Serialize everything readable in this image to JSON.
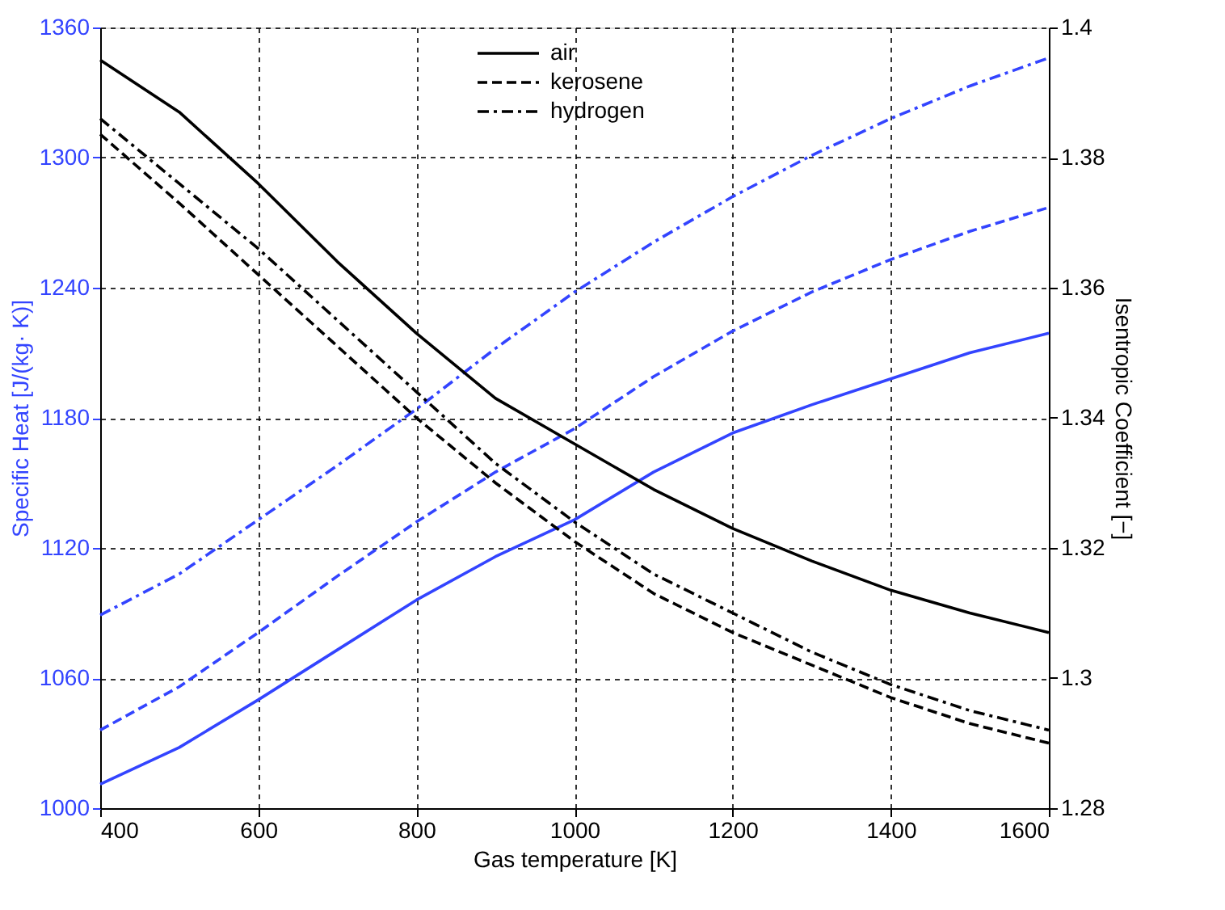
{
  "chart_data": {
    "type": "line",
    "xlabel": "Gas temperature [K]",
    "ylabel": "Specific Heat [J/(kg· K)]",
    "y2label": "Isentropic Coefficient [−]",
    "x": [
      400,
      500,
      600,
      700,
      800,
      900,
      1000,
      1100,
      1200,
      1300,
      1400,
      1500,
      1600
    ],
    "series": [
      {
        "color": "#3344ff",
        "axis": "y",
        "line_style": "solid",
        "values": [
          1011,
          1028,
          1050,
          1073,
          1096,
          1116,
          1133,
          1155,
          1173,
          1186,
          1198,
          1210,
          1219
        ]
      },
      {
        "color": "#3344ff",
        "axis": "y",
        "line_style": "dashed",
        "values": [
          1036,
          1056,
          1081,
          1107,
          1132,
          1155,
          1175,
          1199,
          1220,
          1238,
          1253,
          1266,
          1277
        ]
      },
      {
        "color": "#3344ff",
        "axis": "y",
        "line_style": "dashdot",
        "values": [
          1089,
          1108,
          1133,
          1158,
          1184,
          1212,
          1238,
          1261,
          1282,
          1301,
          1318,
          1333,
          1346
        ]
      },
      {
        "name": "air",
        "color": "#000000",
        "axis": "y2",
        "line_style": "solid",
        "values": [
          1.395,
          1.387,
          1.376,
          1.364,
          1.353,
          1.343,
          1.336,
          1.329,
          1.323,
          1.318,
          1.3135,
          1.31,
          1.307
        ]
      },
      {
        "name": "kerosene",
        "color": "#000000",
        "axis": "y2",
        "line_style": "dashed",
        "values": [
          1.3836,
          1.373,
          1.362,
          1.351,
          1.34,
          1.33,
          1.321,
          1.313,
          1.307,
          1.302,
          1.297,
          1.293,
          1.29
        ]
      },
      {
        "name": "hydrogen",
        "color": "#000000",
        "axis": "y2",
        "line_style": "dashdot",
        "values": [
          1.386,
          1.376,
          1.366,
          1.355,
          1.344,
          1.333,
          1.324,
          1.316,
          1.31,
          1.304,
          1.299,
          1.295,
          1.292
        ]
      }
    ],
    "xlim": [
      400,
      1600
    ],
    "xticks": [
      400,
      600,
      800,
      1000,
      1200,
      1400,
      1600
    ],
    "ylim": [
      1000,
      1360
    ],
    "yticks": [
      1000,
      1060,
      1120,
      1180,
      1240,
      1300,
      1360
    ],
    "y2lim": [
      1.28,
      1.4
    ],
    "y2ticks": [
      1.28,
      1.3,
      1.32,
      1.34,
      1.36,
      1.38,
      1.4
    ],
    "grid": true,
    "legend": "top"
  }
}
